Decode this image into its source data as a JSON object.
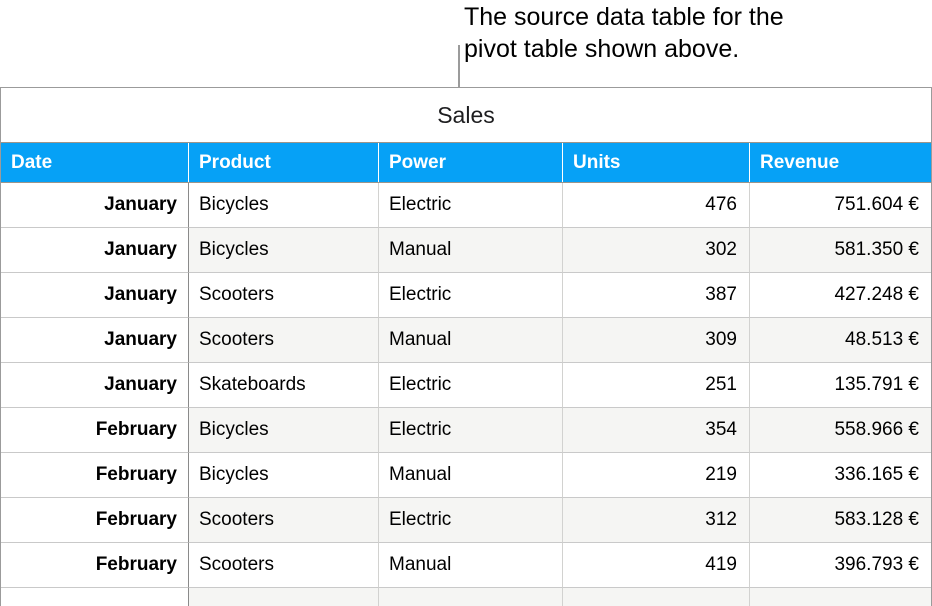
{
  "callout": {
    "line1": "The source data table for the",
    "line2": "pivot table shown above."
  },
  "table": {
    "title": "Sales",
    "headers": [
      "Date",
      "Product",
      "Power",
      "Units",
      "Revenue"
    ],
    "rows": [
      {
        "date": "January",
        "product": "Bicycles",
        "power": "Electric",
        "units": "476",
        "revenue": "751.604 €"
      },
      {
        "date": "January",
        "product": "Bicycles",
        "power": "Manual",
        "units": "302",
        "revenue": "581.350 €"
      },
      {
        "date": "January",
        "product": "Scooters",
        "power": "Electric",
        "units": "387",
        "revenue": "427.248 €"
      },
      {
        "date": "January",
        "product": "Scooters",
        "power": "Manual",
        "units": "309",
        "revenue": "48.513 €"
      },
      {
        "date": "January",
        "product": "Skateboards",
        "power": "Electric",
        "units": "251",
        "revenue": "135.791 €"
      },
      {
        "date": "February",
        "product": "Bicycles",
        "power": "Electric",
        "units": "354",
        "revenue": "558.966 €"
      },
      {
        "date": "February",
        "product": "Bicycles",
        "power": "Manual",
        "units": "219",
        "revenue": "336.165 €"
      },
      {
        "date": "February",
        "product": "Scooters",
        "power": "Electric",
        "units": "312",
        "revenue": "583.128 €"
      },
      {
        "date": "February",
        "product": "Scooters",
        "power": "Manual",
        "units": "419",
        "revenue": "396.793 €"
      }
    ]
  },
  "colors": {
    "header_bg": "#06a1f6",
    "header_text": "#ffffff",
    "alt_row_bg": "#f5f5f3",
    "row_divider": "#c9c9c9",
    "column_divider": "#d2d2d0",
    "date_column_divider": "#8a8a8a",
    "table_border": "#9b9b9b",
    "header_frame": "#9c958b",
    "leader_line": "#9b9b9b",
    "body_text": "#000000"
  }
}
